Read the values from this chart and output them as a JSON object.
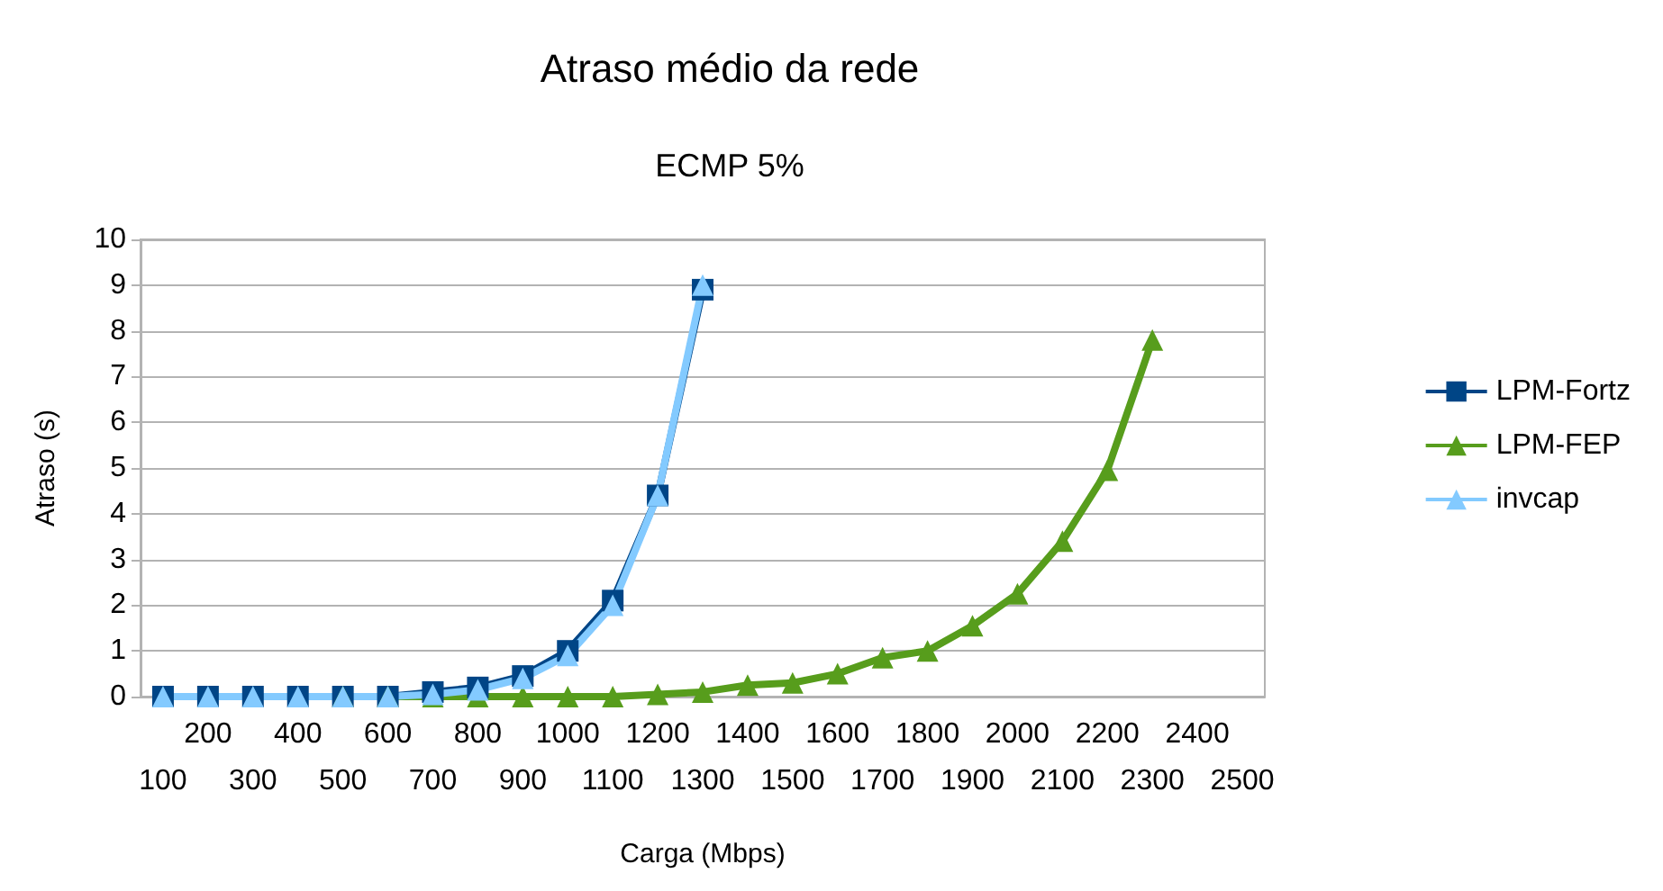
{
  "chart_data": {
    "type": "line",
    "title": "Atraso médio da rede",
    "subtitle": "ECMP 5%",
    "xlabel": "Carga (Mbps)",
    "ylabel": "Atraso (s)",
    "categories": [
      "100",
      "200",
      "300",
      "400",
      "500",
      "600",
      "700",
      "800",
      "900",
      "1000",
      "1100",
      "1200",
      "1300",
      "1400",
      "1500",
      "1600",
      "1700",
      "1800",
      "1900",
      "2000",
      "2100",
      "2200",
      "2300",
      "2400",
      "2500"
    ],
    "series": [
      {
        "name": "LPM-Fortz",
        "color": "#004586",
        "marker": "square",
        "values": [
          0,
          0,
          0,
          0,
          0,
          0,
          0.1,
          0.2,
          0.45,
          1.0,
          2.1,
          4.4,
          8.9,
          null,
          null,
          null,
          null,
          null,
          null,
          null,
          null,
          null,
          null,
          null,
          null
        ]
      },
      {
        "name": "LPM-FEP",
        "color": "#579d1c",
        "marker": "triangle",
        "values": [
          null,
          null,
          null,
          null,
          0,
          0,
          0,
          0,
          0,
          0,
          0,
          0.05,
          0.1,
          0.25,
          0.3,
          0.5,
          0.85,
          1.0,
          1.55,
          2.25,
          3.4,
          4.95,
          7.8,
          null,
          null
        ]
      },
      {
        "name": "invcap",
        "color": "#83caff",
        "marker": "triangle",
        "values": [
          0,
          0,
          0,
          0,
          0,
          0,
          0.05,
          0.15,
          0.4,
          0.9,
          2.0,
          4.4,
          9.0,
          null,
          null,
          null,
          null,
          null,
          null,
          null,
          null,
          null,
          null,
          null,
          null
        ]
      }
    ],
    "ylim": [
      0,
      10
    ],
    "yticks": [
      0,
      1,
      2,
      3,
      4,
      5,
      6,
      7,
      8,
      9,
      10
    ],
    "grid": "y",
    "legend": "right"
  }
}
